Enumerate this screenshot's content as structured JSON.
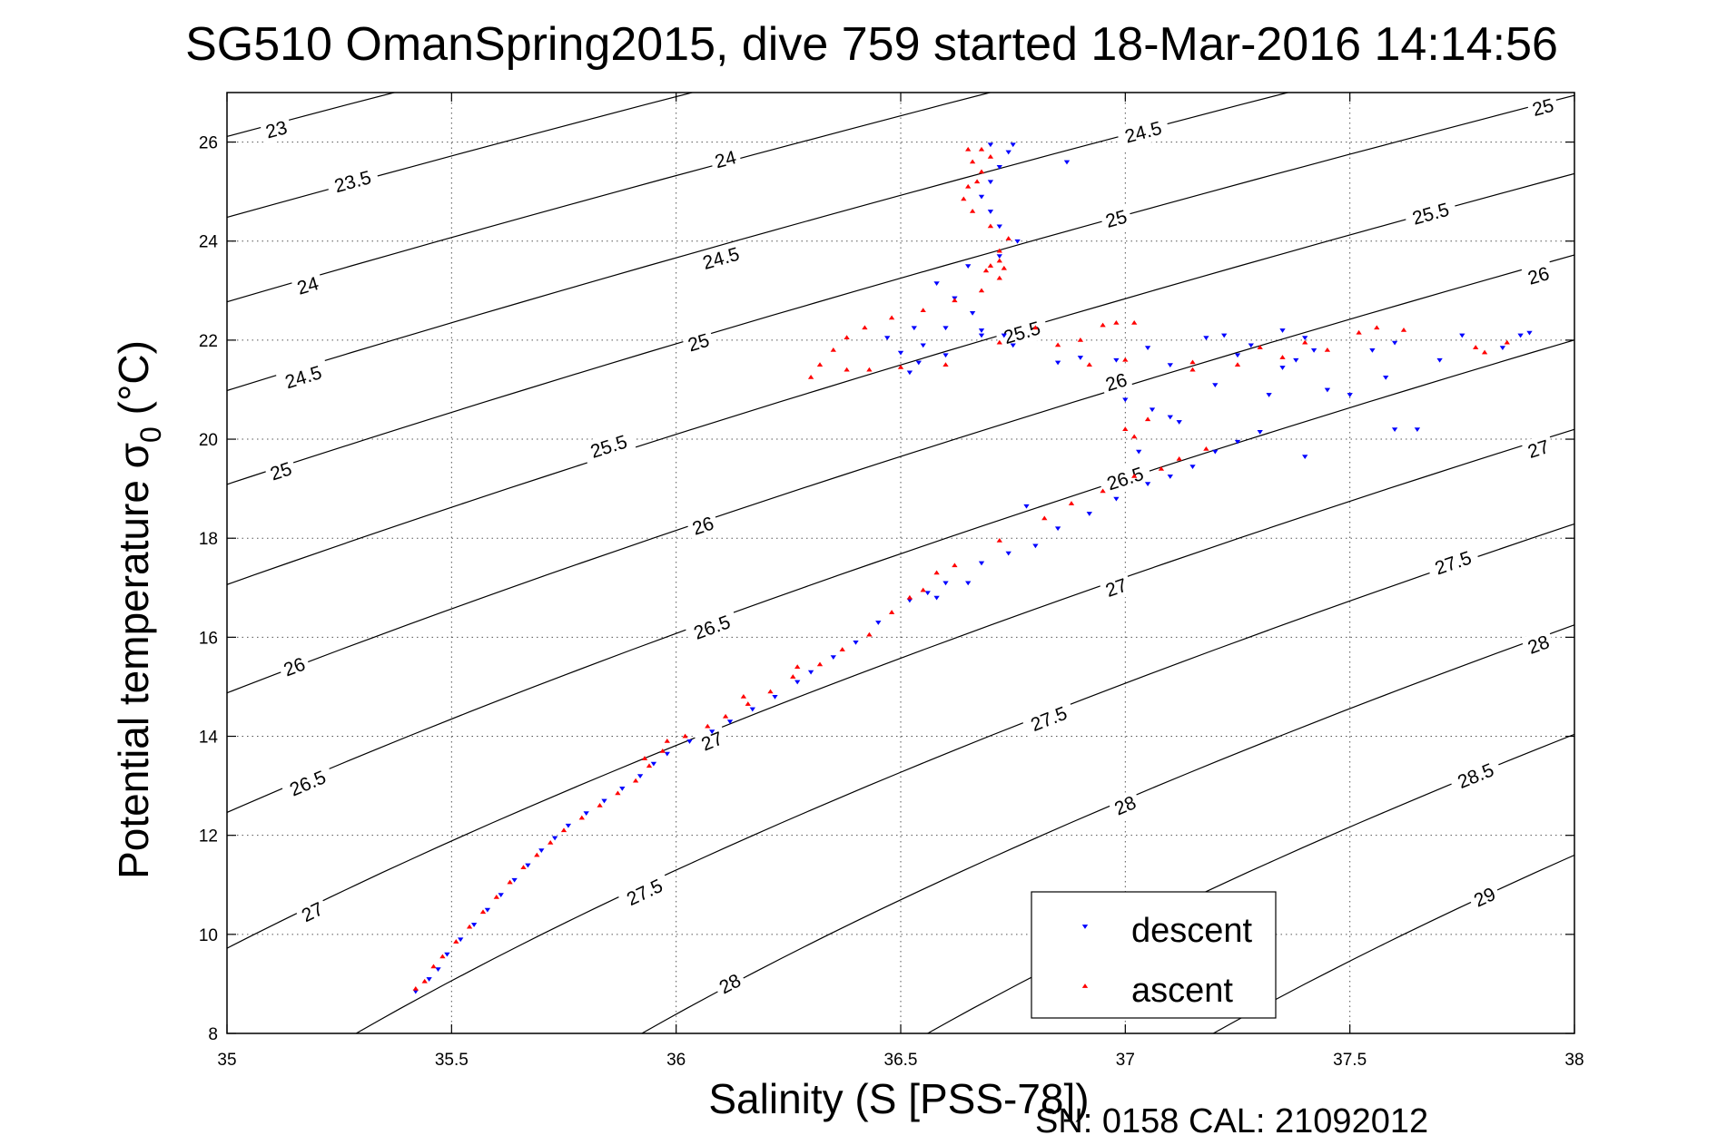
{
  "chart_data": {
    "type": "scatter",
    "title": "SG510 OmanSpring2015, dive 759 started 18-Mar-2016 14:14:56",
    "xlabel": "Salinity (S [PSS-78])",
    "ylabel_main": "Potential temperature σ",
    "ylabel_sub": "0",
    "ylabel_unit": "(°C)",
    "xlim": [
      35,
      38
    ],
    "ylim": [
      8,
      27
    ],
    "xticks": [
      35,
      35.5,
      36,
      36.5,
      37,
      37.5,
      38
    ],
    "xtick_labels": [
      "35",
      "35.5",
      "36",
      "36.5",
      "37",
      "37.5",
      "38"
    ],
    "yticks": [
      8,
      10,
      12,
      14,
      16,
      18,
      20,
      22,
      24,
      26
    ],
    "ytick_labels": [
      "8",
      "10",
      "12",
      "14",
      "16",
      "18",
      "20",
      "22",
      "24",
      "26"
    ],
    "grid": true,
    "grid_style": "dotted",
    "legend_position": "bottom-right",
    "footer": "SN: 0158  CAL: 21092012",
    "density_contours": {
      "color": "#000000",
      "levels": [
        23,
        23.5,
        24,
        24.5,
        25,
        25.5,
        26,
        26.5,
        27,
        27.5,
        28,
        28.5,
        29
      ],
      "level_labels": [
        "23",
        "23.5",
        "24",
        "24.5",
        "25",
        "25.5",
        "26",
        "26.5",
        "27",
        "27.5",
        "28",
        "28.5",
        "29"
      ],
      "labels": [
        {
          "level": 23,
          "text": "23",
          "s": 35.11,
          "t": 26.25
        },
        {
          "level": 23.5,
          "text": "23.5",
          "s": 35.28,
          "t": 25.2
        },
        {
          "level": 24,
          "text": "24",
          "s": 35.18,
          "t": 23.1
        },
        {
          "level": 24.5,
          "text": "24.5",
          "s": 35.17,
          "t": 21.25
        },
        {
          "level": 25,
          "text": "25",
          "s": 35.12,
          "t": 19.35
        },
        {
          "level": 26,
          "text": "26",
          "s": 35.15,
          "t": 15.4
        },
        {
          "level": 26.5,
          "text": "26.5",
          "s": 35.18,
          "t": 13.05
        },
        {
          "level": 27,
          "text": "27",
          "s": 35.19,
          "t": 10.45
        },
        {
          "level": 24,
          "text": "24",
          "s": 36.11,
          "t": 25.65
        },
        {
          "level": 24.5,
          "text": "24.5",
          "s": 36.1,
          "t": 23.65
        },
        {
          "level": 25,
          "text": "25",
          "s": 36.05,
          "t": 21.95
        },
        {
          "level": 25.5,
          "text": "25.5",
          "s": 35.85,
          "t": 19.85
        },
        {
          "level": 26,
          "text": "26",
          "s": 36.06,
          "t": 18.25
        },
        {
          "level": 26.5,
          "text": "26.5",
          "s": 36.08,
          "t": 16.2
        },
        {
          "level": 27,
          "text": "27",
          "s": 36.08,
          "t": 13.9
        },
        {
          "level": 27.5,
          "text": "27.5",
          "s": 35.93,
          "t": 10.85
        },
        {
          "level": 28,
          "text": "28",
          "s": 36.12,
          "t": 9.0
        },
        {
          "level": 24.5,
          "text": "24.5",
          "s": 37.04,
          "t": 26.2
        },
        {
          "level": 25,
          "text": "25",
          "s": 36.98,
          "t": 24.45
        },
        {
          "level": 25.5,
          "text": "25.5",
          "s": 36.77,
          "t": 22.15
        },
        {
          "level": 26,
          "text": "26",
          "s": 36.98,
          "t": 21.15
        },
        {
          "level": 26.5,
          "text": "26.5",
          "s": 37.0,
          "t": 19.2
        },
        {
          "level": 27,
          "text": "27",
          "s": 36.98,
          "t": 17.0
        },
        {
          "level": 27.5,
          "text": "27.5",
          "s": 36.83,
          "t": 14.35
        },
        {
          "level": 28,
          "text": "28",
          "s": 37.0,
          "t": 12.6
        },
        {
          "level": 25,
          "text": "25",
          "s": 37.93,
          "t": 26.7
        },
        {
          "level": 25.5,
          "text": "25.5",
          "s": 37.68,
          "t": 24.55
        },
        {
          "level": 26,
          "text": "26",
          "s": 37.92,
          "t": 23.3
        },
        {
          "level": 27,
          "text": "27",
          "s": 37.92,
          "t": 19.8
        },
        {
          "level": 27.5,
          "text": "27.5",
          "s": 37.73,
          "t": 17.5
        },
        {
          "level": 28,
          "text": "28",
          "s": 37.92,
          "t": 15.85
        },
        {
          "level": 28.5,
          "text": "28.5",
          "s": 37.78,
          "t": 13.2
        },
        {
          "level": 29,
          "text": "29",
          "s": 37.8,
          "t": 10.75
        }
      ]
    },
    "series": [
      {
        "name": "descent",
        "color": "#0000ff",
        "marker": "triangle-down",
        "points": [
          [
            35.42,
            8.85
          ],
          [
            35.45,
            9.1
          ],
          [
            35.47,
            9.3
          ],
          [
            35.49,
            9.6
          ],
          [
            35.52,
            9.9
          ],
          [
            35.55,
            10.2
          ],
          [
            35.58,
            10.5
          ],
          [
            35.61,
            10.8
          ],
          [
            35.64,
            11.1
          ],
          [
            35.67,
            11.4
          ],
          [
            35.7,
            11.7
          ],
          [
            35.73,
            11.95
          ],
          [
            35.76,
            12.2
          ],
          [
            35.8,
            12.45
          ],
          [
            35.84,
            12.7
          ],
          [
            35.88,
            12.95
          ],
          [
            35.92,
            13.2
          ],
          [
            35.95,
            13.45
          ],
          [
            35.98,
            13.65
          ],
          [
            36.03,
            13.9
          ],
          [
            36.08,
            14.1
          ],
          [
            36.12,
            14.3
          ],
          [
            36.17,
            14.55
          ],
          [
            36.22,
            14.8
          ],
          [
            36.27,
            15.1
          ],
          [
            36.3,
            15.3
          ],
          [
            36.35,
            15.6
          ],
          [
            36.4,
            15.9
          ],
          [
            36.45,
            16.3
          ],
          [
            36.52,
            16.75
          ],
          [
            36.56,
            16.9
          ],
          [
            36.6,
            17.1
          ],
          [
            36.68,
            17.5
          ],
          [
            36.74,
            17.7
          ],
          [
            36.8,
            17.85
          ],
          [
            36.85,
            18.2
          ],
          [
            36.92,
            18.5
          ],
          [
            36.98,
            18.8
          ],
          [
            37.05,
            19.1
          ],
          [
            37.1,
            19.25
          ],
          [
            37.15,
            19.45
          ],
          [
            37.2,
            19.75
          ],
          [
            37.25,
            19.95
          ],
          [
            37.3,
            20.15
          ],
          [
            37.4,
            19.65
          ],
          [
            37.12,
            20.35
          ],
          [
            37.06,
            20.6
          ],
          [
            37.0,
            20.8
          ],
          [
            37.2,
            21.1
          ],
          [
            37.32,
            20.9
          ],
          [
            37.45,
            21.0
          ],
          [
            37.5,
            20.9
          ],
          [
            37.58,
            21.25
          ],
          [
            37.65,
            20.2
          ],
          [
            37.7,
            21.6
          ],
          [
            37.55,
            21.8
          ],
          [
            37.42,
            21.8
          ],
          [
            37.35,
            21.45
          ],
          [
            37.25,
            21.7
          ],
          [
            37.18,
            22.05
          ],
          [
            37.22,
            22.1
          ],
          [
            37.28,
            21.9
          ],
          [
            37.1,
            21.5
          ],
          [
            37.05,
            21.85
          ],
          [
            36.98,
            21.6
          ],
          [
            36.9,
            21.65
          ],
          [
            36.85,
            21.55
          ],
          [
            36.75,
            21.9
          ],
          [
            36.68,
            22.1
          ],
          [
            36.6,
            21.7
          ],
          [
            36.55,
            21.9
          ],
          [
            36.52,
            21.35
          ],
          [
            36.54,
            21.55
          ],
          [
            36.5,
            21.75
          ],
          [
            36.47,
            22.05
          ],
          [
            36.53,
            22.25
          ],
          [
            36.6,
            22.25
          ],
          [
            36.68,
            22.2
          ],
          [
            36.73,
            22.1
          ],
          [
            36.66,
            22.55
          ],
          [
            36.62,
            22.85
          ],
          [
            36.58,
            23.15
          ],
          [
            36.65,
            23.5
          ],
          [
            36.72,
            23.7
          ],
          [
            36.76,
            24.0
          ],
          [
            36.72,
            24.3
          ],
          [
            36.7,
            24.6
          ],
          [
            36.68,
            24.9
          ],
          [
            36.7,
            25.2
          ],
          [
            36.72,
            25.5
          ],
          [
            36.74,
            25.8
          ],
          [
            36.75,
            25.95
          ],
          [
            36.7,
            25.95
          ],
          [
            36.87,
            25.6
          ],
          [
            37.38,
            21.6
          ],
          [
            37.6,
            21.95
          ],
          [
            37.75,
            22.1
          ],
          [
            37.88,
            22.1
          ],
          [
            37.9,
            22.15
          ],
          [
            37.84,
            21.85
          ],
          [
            37.4,
            22.05
          ],
          [
            37.35,
            22.2
          ],
          [
            37.1,
            20.45
          ],
          [
            37.6,
            20.2
          ],
          [
            37.03,
            19.75
          ],
          [
            36.78,
            18.65
          ],
          [
            36.65,
            17.1
          ],
          [
            36.58,
            16.8
          ]
        ]
      },
      {
        "name": "ascent",
        "color": "#ff0000",
        "marker": "triangle-up",
        "points": [
          [
            35.42,
            8.9
          ],
          [
            35.44,
            9.05
          ],
          [
            35.46,
            9.35
          ],
          [
            35.48,
            9.55
          ],
          [
            35.51,
            9.85
          ],
          [
            35.54,
            10.15
          ],
          [
            35.57,
            10.45
          ],
          [
            35.6,
            10.75
          ],
          [
            35.63,
            11.05
          ],
          [
            35.66,
            11.35
          ],
          [
            35.69,
            11.6
          ],
          [
            35.72,
            11.85
          ],
          [
            35.75,
            12.1
          ],
          [
            35.79,
            12.35
          ],
          [
            35.83,
            12.6
          ],
          [
            35.87,
            12.85
          ],
          [
            35.91,
            13.1
          ],
          [
            35.94,
            13.4
          ],
          [
            35.97,
            13.7
          ],
          [
            36.02,
            14.0
          ],
          [
            36.07,
            14.2
          ],
          [
            36.11,
            14.4
          ],
          [
            36.16,
            14.65
          ],
          [
            36.21,
            14.9
          ],
          [
            36.26,
            15.2
          ],
          [
            36.32,
            15.45
          ],
          [
            36.37,
            15.75
          ],
          [
            36.43,
            16.05
          ],
          [
            36.48,
            16.5
          ],
          [
            36.52,
            16.8
          ],
          [
            36.58,
            17.3
          ],
          [
            36.62,
            17.45
          ],
          [
            36.72,
            17.95
          ],
          [
            36.82,
            18.4
          ],
          [
            36.88,
            18.7
          ],
          [
            36.95,
            18.95
          ],
          [
            37.02,
            19.25
          ],
          [
            37.08,
            19.4
          ],
          [
            37.12,
            19.6
          ],
          [
            37.18,
            19.8
          ],
          [
            37.05,
            20.4
          ],
          [
            37.02,
            20.05
          ],
          [
            37.0,
            20.2
          ],
          [
            37.15,
            21.4
          ],
          [
            37.25,
            21.5
          ],
          [
            37.35,
            21.65
          ],
          [
            37.45,
            21.8
          ],
          [
            37.52,
            22.15
          ],
          [
            37.56,
            22.25
          ],
          [
            37.62,
            22.2
          ],
          [
            37.78,
            21.85
          ],
          [
            37.8,
            21.75
          ],
          [
            37.85,
            21.95
          ],
          [
            37.4,
            21.95
          ],
          [
            37.3,
            21.85
          ],
          [
            37.15,
            21.55
          ],
          [
            37.0,
            21.6
          ],
          [
            36.92,
            21.5
          ],
          [
            36.85,
            21.9
          ],
          [
            36.9,
            22.0
          ],
          [
            36.95,
            22.3
          ],
          [
            36.98,
            22.35
          ],
          [
            37.02,
            22.35
          ],
          [
            36.8,
            22.25
          ],
          [
            36.72,
            21.95
          ],
          [
            36.6,
            21.5
          ],
          [
            36.5,
            21.45
          ],
          [
            36.43,
            21.4
          ],
          [
            36.38,
            21.4
          ],
          [
            36.3,
            21.25
          ],
          [
            36.32,
            21.5
          ],
          [
            36.35,
            21.8
          ],
          [
            36.38,
            22.05
          ],
          [
            36.42,
            22.25
          ],
          [
            36.48,
            22.45
          ],
          [
            36.55,
            22.6
          ],
          [
            36.62,
            22.8
          ],
          [
            36.68,
            23.0
          ],
          [
            36.72,
            23.25
          ],
          [
            36.7,
            23.5
          ],
          [
            36.72,
            23.8
          ],
          [
            36.74,
            24.05
          ],
          [
            36.7,
            24.3
          ],
          [
            36.66,
            24.6
          ],
          [
            36.64,
            24.85
          ],
          [
            36.65,
            25.1
          ],
          [
            36.68,
            25.4
          ],
          [
            36.7,
            25.7
          ],
          [
            36.68,
            25.85
          ],
          [
            36.65,
            25.85
          ],
          [
            36.66,
            25.6
          ],
          [
            36.67,
            25.2
          ],
          [
            36.72,
            23.6
          ],
          [
            36.73,
            23.45
          ],
          [
            36.69,
            23.4
          ],
          [
            36.27,
            15.4
          ],
          [
            36.15,
            14.8
          ],
          [
            35.98,
            13.9
          ],
          [
            35.93,
            13.55
          ],
          [
            36.55,
            16.95
          ]
        ]
      }
    ]
  },
  "legend": {
    "items": [
      {
        "label": "descent",
        "color": "#0000ff",
        "marker": "triangle-down"
      },
      {
        "label": "ascent",
        "color": "#ff0000",
        "marker": "triangle-up"
      }
    ]
  }
}
